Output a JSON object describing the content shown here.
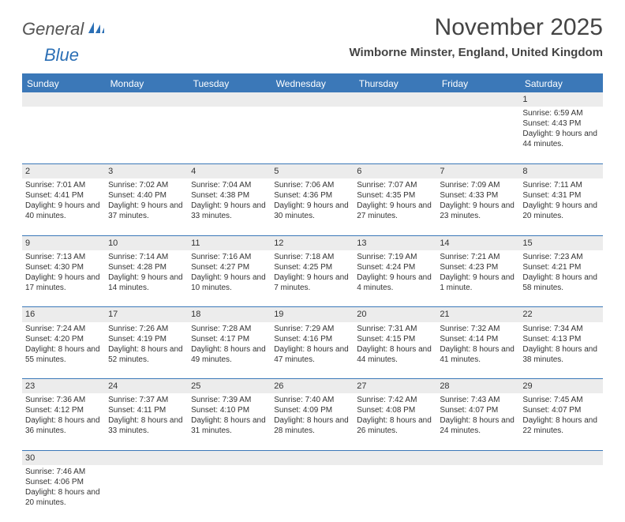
{
  "logo": {
    "text1": "General",
    "text2": "Blue"
  },
  "title": "November 2025",
  "location": "Wimborne Minster, England, United Kingdom",
  "headers": [
    "Sunday",
    "Monday",
    "Tuesday",
    "Wednesday",
    "Thursday",
    "Friday",
    "Saturday"
  ],
  "colors": {
    "header_bg": "#3b78b8",
    "header_text": "#ffffff",
    "daynum_bg": "#ececec",
    "border": "#3b78b8",
    "logo_gray": "#555555",
    "logo_blue": "#2b6fb5"
  },
  "weeks": [
    [
      {
        "day": "",
        "sunrise": "",
        "sunset": "",
        "daylight": ""
      },
      {
        "day": "",
        "sunrise": "",
        "sunset": "",
        "daylight": ""
      },
      {
        "day": "",
        "sunrise": "",
        "sunset": "",
        "daylight": ""
      },
      {
        "day": "",
        "sunrise": "",
        "sunset": "",
        "daylight": ""
      },
      {
        "day": "",
        "sunrise": "",
        "sunset": "",
        "daylight": ""
      },
      {
        "day": "",
        "sunrise": "",
        "sunset": "",
        "daylight": ""
      },
      {
        "day": "1",
        "sunrise": "Sunrise: 6:59 AM",
        "sunset": "Sunset: 4:43 PM",
        "daylight": "Daylight: 9 hours and 44 minutes."
      }
    ],
    [
      {
        "day": "2",
        "sunrise": "Sunrise: 7:01 AM",
        "sunset": "Sunset: 4:41 PM",
        "daylight": "Daylight: 9 hours and 40 minutes."
      },
      {
        "day": "3",
        "sunrise": "Sunrise: 7:02 AM",
        "sunset": "Sunset: 4:40 PM",
        "daylight": "Daylight: 9 hours and 37 minutes."
      },
      {
        "day": "4",
        "sunrise": "Sunrise: 7:04 AM",
        "sunset": "Sunset: 4:38 PM",
        "daylight": "Daylight: 9 hours and 33 minutes."
      },
      {
        "day": "5",
        "sunrise": "Sunrise: 7:06 AM",
        "sunset": "Sunset: 4:36 PM",
        "daylight": "Daylight: 9 hours and 30 minutes."
      },
      {
        "day": "6",
        "sunrise": "Sunrise: 7:07 AM",
        "sunset": "Sunset: 4:35 PM",
        "daylight": "Daylight: 9 hours and 27 minutes."
      },
      {
        "day": "7",
        "sunrise": "Sunrise: 7:09 AM",
        "sunset": "Sunset: 4:33 PM",
        "daylight": "Daylight: 9 hours and 23 minutes."
      },
      {
        "day": "8",
        "sunrise": "Sunrise: 7:11 AM",
        "sunset": "Sunset: 4:31 PM",
        "daylight": "Daylight: 9 hours and 20 minutes."
      }
    ],
    [
      {
        "day": "9",
        "sunrise": "Sunrise: 7:13 AM",
        "sunset": "Sunset: 4:30 PM",
        "daylight": "Daylight: 9 hours and 17 minutes."
      },
      {
        "day": "10",
        "sunrise": "Sunrise: 7:14 AM",
        "sunset": "Sunset: 4:28 PM",
        "daylight": "Daylight: 9 hours and 14 minutes."
      },
      {
        "day": "11",
        "sunrise": "Sunrise: 7:16 AM",
        "sunset": "Sunset: 4:27 PM",
        "daylight": "Daylight: 9 hours and 10 minutes."
      },
      {
        "day": "12",
        "sunrise": "Sunrise: 7:18 AM",
        "sunset": "Sunset: 4:25 PM",
        "daylight": "Daylight: 9 hours and 7 minutes."
      },
      {
        "day": "13",
        "sunrise": "Sunrise: 7:19 AM",
        "sunset": "Sunset: 4:24 PM",
        "daylight": "Daylight: 9 hours and 4 minutes."
      },
      {
        "day": "14",
        "sunrise": "Sunrise: 7:21 AM",
        "sunset": "Sunset: 4:23 PM",
        "daylight": "Daylight: 9 hours and 1 minute."
      },
      {
        "day": "15",
        "sunrise": "Sunrise: 7:23 AM",
        "sunset": "Sunset: 4:21 PM",
        "daylight": "Daylight: 8 hours and 58 minutes."
      }
    ],
    [
      {
        "day": "16",
        "sunrise": "Sunrise: 7:24 AM",
        "sunset": "Sunset: 4:20 PM",
        "daylight": "Daylight: 8 hours and 55 minutes."
      },
      {
        "day": "17",
        "sunrise": "Sunrise: 7:26 AM",
        "sunset": "Sunset: 4:19 PM",
        "daylight": "Daylight: 8 hours and 52 minutes."
      },
      {
        "day": "18",
        "sunrise": "Sunrise: 7:28 AM",
        "sunset": "Sunset: 4:17 PM",
        "daylight": "Daylight: 8 hours and 49 minutes."
      },
      {
        "day": "19",
        "sunrise": "Sunrise: 7:29 AM",
        "sunset": "Sunset: 4:16 PM",
        "daylight": "Daylight: 8 hours and 47 minutes."
      },
      {
        "day": "20",
        "sunrise": "Sunrise: 7:31 AM",
        "sunset": "Sunset: 4:15 PM",
        "daylight": "Daylight: 8 hours and 44 minutes."
      },
      {
        "day": "21",
        "sunrise": "Sunrise: 7:32 AM",
        "sunset": "Sunset: 4:14 PM",
        "daylight": "Daylight: 8 hours and 41 minutes."
      },
      {
        "day": "22",
        "sunrise": "Sunrise: 7:34 AM",
        "sunset": "Sunset: 4:13 PM",
        "daylight": "Daylight: 8 hours and 38 minutes."
      }
    ],
    [
      {
        "day": "23",
        "sunrise": "Sunrise: 7:36 AM",
        "sunset": "Sunset: 4:12 PM",
        "daylight": "Daylight: 8 hours and 36 minutes."
      },
      {
        "day": "24",
        "sunrise": "Sunrise: 7:37 AM",
        "sunset": "Sunset: 4:11 PM",
        "daylight": "Daylight: 8 hours and 33 minutes."
      },
      {
        "day": "25",
        "sunrise": "Sunrise: 7:39 AM",
        "sunset": "Sunset: 4:10 PM",
        "daylight": "Daylight: 8 hours and 31 minutes."
      },
      {
        "day": "26",
        "sunrise": "Sunrise: 7:40 AM",
        "sunset": "Sunset: 4:09 PM",
        "daylight": "Daylight: 8 hours and 28 minutes."
      },
      {
        "day": "27",
        "sunrise": "Sunrise: 7:42 AM",
        "sunset": "Sunset: 4:08 PM",
        "daylight": "Daylight: 8 hours and 26 minutes."
      },
      {
        "day": "28",
        "sunrise": "Sunrise: 7:43 AM",
        "sunset": "Sunset: 4:07 PM",
        "daylight": "Daylight: 8 hours and 24 minutes."
      },
      {
        "day": "29",
        "sunrise": "Sunrise: 7:45 AM",
        "sunset": "Sunset: 4:07 PM",
        "daylight": "Daylight: 8 hours and 22 minutes."
      }
    ],
    [
      {
        "day": "30",
        "sunrise": "Sunrise: 7:46 AM",
        "sunset": "Sunset: 4:06 PM",
        "daylight": "Daylight: 8 hours and 20 minutes."
      },
      {
        "day": "",
        "sunrise": "",
        "sunset": "",
        "daylight": ""
      },
      {
        "day": "",
        "sunrise": "",
        "sunset": "",
        "daylight": ""
      },
      {
        "day": "",
        "sunrise": "",
        "sunset": "",
        "daylight": ""
      },
      {
        "day": "",
        "sunrise": "",
        "sunset": "",
        "daylight": ""
      },
      {
        "day": "",
        "sunrise": "",
        "sunset": "",
        "daylight": ""
      },
      {
        "day": "",
        "sunrise": "",
        "sunset": "",
        "daylight": ""
      }
    ]
  ]
}
